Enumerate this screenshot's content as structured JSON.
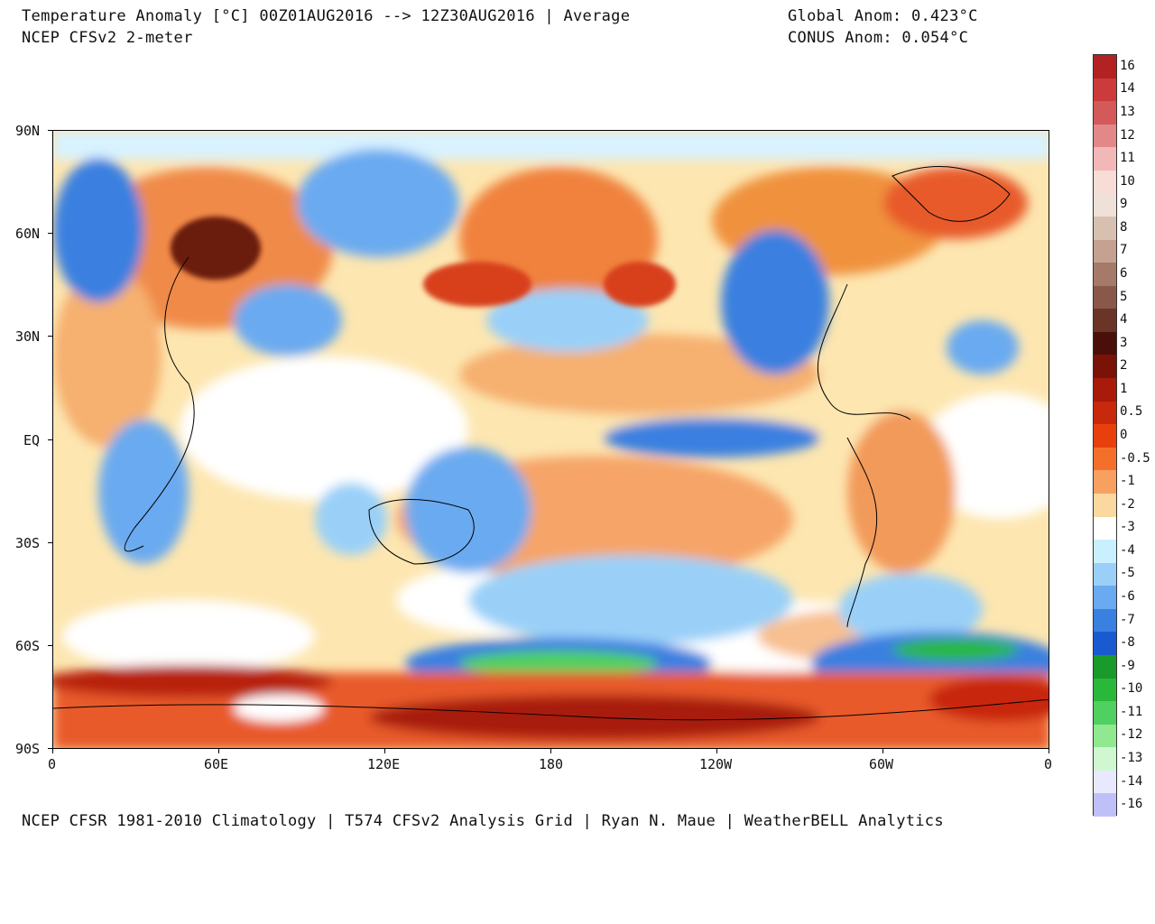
{
  "header": {
    "title_line1": "Temperature Anomaly [°C] 00Z01AUG2016 --> 12Z30AUG2016 | Average",
    "title_line2": "NCEP CFSv2 2-meter",
    "global_anom": "Global Anom: 0.423°C",
    "conus_anom": "CONUS Anom: 0.054°C"
  },
  "footer": "NCEP CFSR 1981-2010 Climatology | T574 CFSv2 Analysis Grid | Ryan N. Maue | WeatherBELL Analytics",
  "axes": {
    "y_labels": [
      "90N",
      "60N",
      "30N",
      "EQ",
      "30S",
      "60S",
      "90S"
    ],
    "x_labels": [
      "0",
      "60E",
      "120E",
      "180",
      "120W",
      "60W",
      "0"
    ]
  },
  "colorbar": {
    "labels": [
      "16",
      "14",
      "13",
      "12",
      "11",
      "10",
      "9",
      "8",
      "7",
      "6",
      "5",
      "4",
      "3",
      "2",
      "1",
      "0.5",
      "0",
      "-0.5",
      "-1",
      "-2",
      "-3",
      "-4",
      "-5",
      "-6",
      "-7",
      "-8",
      "-9",
      "-10",
      "-11",
      "-12",
      "-13",
      "-14",
      "-16"
    ],
    "colors": [
      "#b22222",
      "#cc3b3b",
      "#d45a5a",
      "#e38888",
      "#f2b8b8",
      "#f8dcd6",
      "#efe1d8",
      "#d8c0b0",
      "#c4a190",
      "#a57a68",
      "#8a5848",
      "#6a3526",
      "#4a0f08",
      "#7a1208",
      "#a81a0a",
      "#c8280c",
      "#e8400c",
      "#f4702a",
      "#f8a060",
      "#fad8a0",
      "#ffffff",
      "#c8f0ff",
      "#9ad0f8",
      "#6aaaf0",
      "#3a80e0",
      "#1a5ad0",
      "#1a9a2a",
      "#2ab83a",
      "#50d060",
      "#90e890",
      "#d0f8d0",
      "#e8e8ff",
      "#c0c0f8"
    ]
  },
  "map": {
    "background": "#fdf3c8"
  }
}
